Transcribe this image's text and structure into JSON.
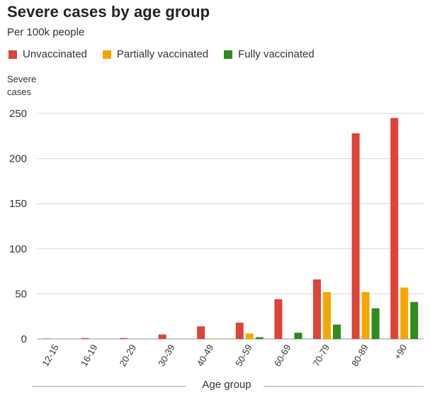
{
  "chart_data": {
    "type": "bar",
    "title": "Severe cases by age group",
    "subtitle": "Per 100k people",
    "ylabel_line1": "Severe",
    "ylabel_line2": "cases",
    "xlabel": "Age group",
    "ylim": [
      0,
      250
    ],
    "yticks": [
      0,
      50,
      100,
      150,
      200,
      250
    ],
    "grid": true,
    "legend_position": "top-left",
    "categories": [
      "12-15",
      "16-19",
      "20-29",
      "30-39",
      "40-49",
      "50-59",
      "60-69",
      "70-79",
      "80-89",
      "+90"
    ],
    "series": [
      {
        "name": "Unvaccinated",
        "color": "#db4437",
        "values": [
          0.5,
          1,
          1,
          5,
          14,
          18,
          44,
          66,
          228,
          245
        ]
      },
      {
        "name": "Partially vaccinated",
        "color": "#f4a700",
        "values": [
          0,
          0,
          0,
          0,
          0.5,
          6,
          0,
          52,
          52,
          57
        ]
      },
      {
        "name": "Fully vaccinated",
        "color": "#2e8b1f",
        "values": [
          0,
          0,
          0,
          0,
          0,
          2,
          7,
          16,
          34,
          41
        ]
      }
    ]
  }
}
